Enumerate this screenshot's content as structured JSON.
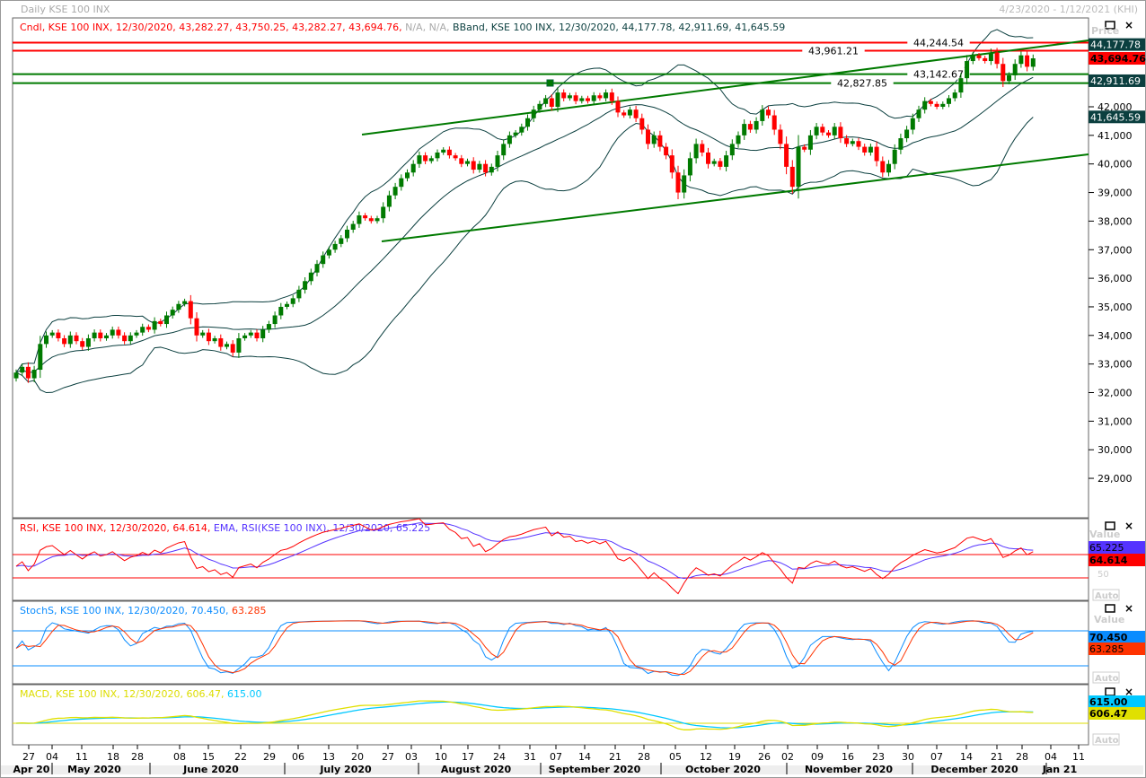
{
  "window": {
    "title": "Daily KSE 100 INX",
    "range": "4/23/2020 - 1/12/2021 (KHI)"
  },
  "panels": {
    "price": {
      "legend_cndl": "Cndl, KSE 100 INX, 12/30/2020, 43,282.27, 43,750.25, 43,282.27, 43,694.76,",
      "legend_na": "N/A, N/A,",
      "legend_bband": "BBand, KSE 100 INX, 12/30/2020, 44,177.78, 42,911.69, 41,645.59",
      "axis_title": "Price",
      "tags": [
        {
          "text": "44,177.78",
          "value": 44177.78,
          "bg": "#0b3f3f",
          "fg": "#ffffff"
        },
        {
          "text": "43,694.76",
          "value": 43694.76,
          "bg": "#ff0000",
          "fg": "#000000"
        },
        {
          "text": "42,911.69",
          "value": 42911.69,
          "bg": "#0b3f3f",
          "fg": "#ffffff"
        },
        {
          "text": "41,645.59",
          "value": 41645.59,
          "bg": "#0b3f3f",
          "fg": "#ffffff"
        }
      ],
      "yticks": [
        "42,000",
        "41,000",
        "40,000",
        "39,000",
        "38,000",
        "37,000",
        "36,000",
        "35,000",
        "34,000",
        "33,000",
        "32,000",
        "31,000",
        "30,000",
        "29,000"
      ],
      "hlines": [
        {
          "text": "44,244.54",
          "value": 44244.54,
          "color": "#ff0000"
        },
        {
          "text": "43,961.21",
          "value": 43961.21,
          "color": "#ff0000"
        },
        {
          "text": "43,142.67",
          "value": 43142.67,
          "color": "#007a00"
        },
        {
          "text": "42,827.85",
          "value": 42827.85,
          "color": "#007a00"
        }
      ]
    },
    "rsi": {
      "legend_rsi": "RSI, KSE 100 INX, 12/30/2020, 64.614,",
      "legend_ema": "EMA, RSI(KSE 100 INX), 12/30/2020, 65.225",
      "axis_title": "Value",
      "tick": "50",
      "auto": "Auto",
      "tags": [
        {
          "text": "65.225",
          "bg": "#5533ff"
        },
        {
          "text": "64.614",
          "bg": "#ff0000"
        }
      ]
    },
    "stoch": {
      "legend_k": "StochS, KSE 100 INX, 12/30/2020, 70.450,",
      "legend_d": "63.285",
      "axis_title": "Value",
      "auto": "Auto",
      "tags": [
        {
          "text": "70.450",
          "bg": "#0a8cff"
        },
        {
          "text": "63.285",
          "bg": "#ff3300"
        }
      ]
    },
    "macd": {
      "legend_macd": "MACD, KSE 100 INX, 12/30/2020, 606.47,",
      "legend_signal": "615.00",
      "auto": "Auto",
      "tags": [
        {
          "text": "615.00",
          "bg": "#00c8ff"
        },
        {
          "text": "606.47",
          "bg": "#e0e000"
        }
      ]
    }
  },
  "xaxis": {
    "days": [
      "27",
      "04",
      "11",
      "18",
      "28",
      "08",
      "15",
      "22",
      "29",
      "06",
      "13",
      "20",
      "27",
      "03",
      "10",
      "17",
      "24",
      "31",
      "07",
      "14",
      "21",
      "28",
      "05",
      "12",
      "19",
      "26",
      "02",
      "09",
      "16",
      "23",
      "30",
      "07",
      "14",
      "21",
      "28",
      "04",
      "11"
    ],
    "months": [
      "Apr 20",
      "May 2020",
      "June 2020",
      "July 2020",
      "August 2020",
      "September 2020",
      "October 2020",
      "November 2020",
      "December 2020",
      "Jan 21"
    ]
  },
  "colors": {
    "up": "#007a00",
    "down": "#ff0000",
    "bband": "#0b3f3f",
    "trendline": "#007a00",
    "rsi": "#ff0000",
    "rsi_ema": "#5533ff",
    "stoch_k": "#0a8cff",
    "stoch_d": "#ff3300",
    "macd": "#e0e000",
    "macd_signal": "#00c8ff"
  },
  "chart_data": {
    "type": "candlestick",
    "title": "Daily KSE 100 INX",
    "date_range": "4/23/2020 - 1/12/2021",
    "ylim": [
      28500,
      44500
    ],
    "last": {
      "date": "12/30/2020",
      "open": 43282.27,
      "high": 43750.25,
      "low": 43282.27,
      "close": 43694.76
    },
    "closes": [
      32700,
      32900,
      32500,
      32800,
      33700,
      34000,
      34100,
      33900,
      33700,
      34000,
      33800,
      33600,
      33900,
      34100,
      33900,
      34000,
      34200,
      34000,
      33800,
      34000,
      34100,
      34300,
      34200,
      34500,
      34400,
      34700,
      34900,
      35100,
      35200,
      34600,
      34000,
      34100,
      33800,
      33900,
      33600,
      33700,
      33400,
      33900,
      34000,
      34100,
      33900,
      34200,
      34400,
      34700,
      35000,
      35100,
      35300,
      35600,
      35900,
      36200,
      36500,
      36800,
      37000,
      37200,
      37400,
      37700,
      37900,
      38200,
      38100,
      38000,
      38100,
      38500,
      38900,
      39200,
      39500,
      39700,
      40000,
      40300,
      40100,
      40200,
      40400,
      40500,
      40300,
      40200,
      40000,
      40100,
      39800,
      40000,
      39700,
      39900,
      40300,
      40700,
      41000,
      41100,
      41300,
      41600,
      41900,
      42100,
      42300,
      42000,
      42500,
      42300,
      42400,
      42200,
      42300,
      42200,
      42400,
      42300,
      42500,
      42200,
      41800,
      41700,
      41900,
      41600,
      41200,
      40700,
      41000,
      40600,
      40300,
      39700,
      39000,
      39600,
      40200,
      40700,
      40400,
      40000,
      40100,
      39900,
      40300,
      40700,
      41000,
      41400,
      41200,
      41500,
      41900,
      41700,
      41200,
      40700,
      39900,
      39200,
      40600,
      40500,
      41000,
      41300,
      41100,
      41000,
      41300,
      40900,
      40700,
      40800,
      40600,
      40400,
      40600,
      40100,
      39700,
      40000,
      40500,
      40900,
      41200,
      41600,
      41900,
      42200,
      42100,
      42000,
      42100,
      42300,
      42500,
      43000,
      43600,
      43800,
      43700,
      43600,
      43900,
      43500,
      42900,
      43100,
      43500,
      43800,
      43400,
      43694.76
    ],
    "bollinger": {
      "upper": 44177.78,
      "middle": 42911.69,
      "lower": 41645.59
    },
    "rsi": {
      "rsi": 64.614,
      "ema": 65.225
    },
    "stoch": {
      "k": 70.45,
      "d": 63.285
    },
    "macd": {
      "macd": 606.47,
      "signal": 615.0
    }
  }
}
